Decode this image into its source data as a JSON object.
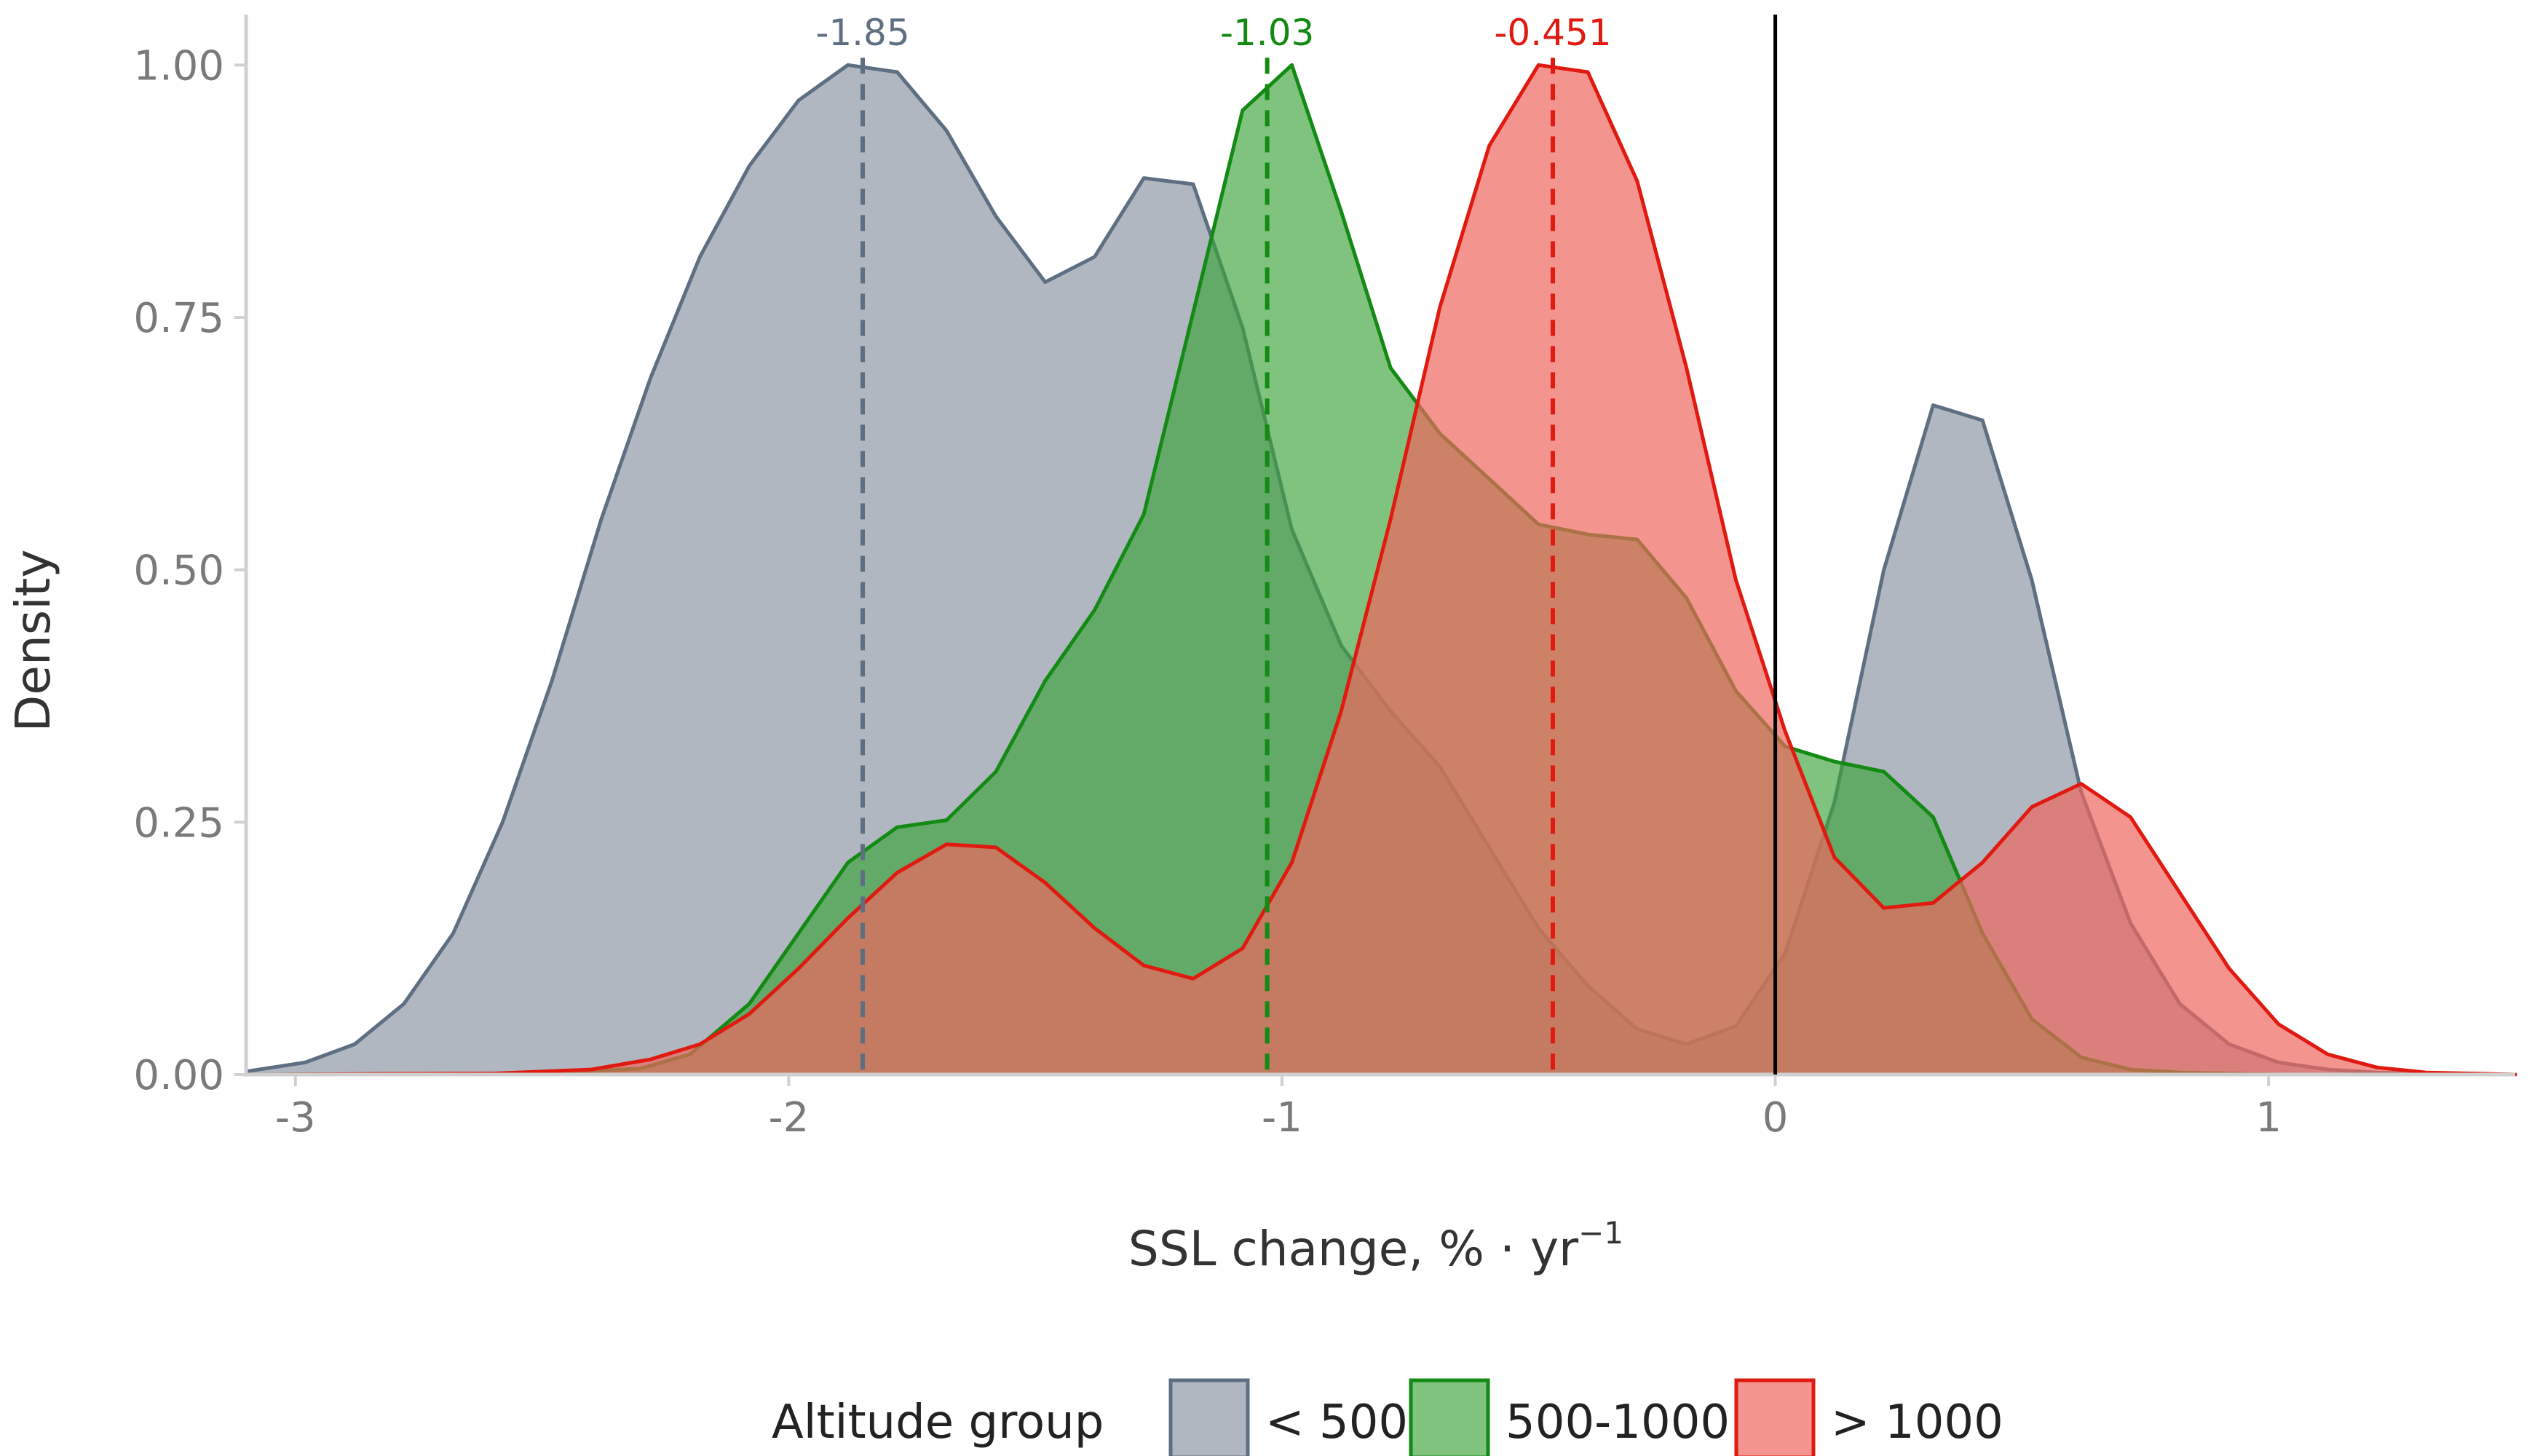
{
  "chart_data": {
    "type": "area",
    "title": "",
    "xlabel": "SSL change, % · yr",
    "xlabel_superscript": "−1",
    "ylabel": "Density",
    "xlim": [
      -3.1,
      1.5
    ],
    "ylim": [
      0,
      1.05
    ],
    "x_ticks": [
      -3,
      -2,
      -1,
      0,
      1
    ],
    "x_tick_labels": [
      "-3",
      "-2",
      "-1",
      "0",
      "1"
    ],
    "y_ticks": [
      0,
      0.25,
      0.5,
      0.75,
      1.0
    ],
    "y_tick_labels": [
      "0.00",
      "0.25",
      "0.50",
      "0.75",
      "1.00"
    ],
    "grid": false,
    "reference_line_x": 0,
    "legend": {
      "title": "Altitude group",
      "position": "bottom"
    },
    "series": [
      {
        "name": "< 500",
        "fill": "#9aa3b0",
        "line": "#5f6f82",
        "fill_opacity": 0.78,
        "mean": -1.85,
        "mean_label": "-1.85",
        "x": [
          -3.1,
          -2.98,
          -2.88,
          -2.78,
          -2.68,
          -2.58,
          -2.48,
          -2.38,
          -2.28,
          -2.18,
          -2.08,
          -1.98,
          -1.88,
          -1.78,
          -1.68,
          -1.58,
          -1.48,
          -1.38,
          -1.28,
          -1.18,
          -1.08,
          -0.98,
          -0.88,
          -0.78,
          -0.68,
          -0.58,
          -0.48,
          -0.38,
          -0.28,
          -0.18,
          -0.08,
          0.02,
          0.12,
          0.22,
          0.32,
          0.42,
          0.52,
          0.62,
          0.72,
          0.82,
          0.92,
          1.02,
          1.12,
          1.22,
          1.32,
          1.5
        ],
        "y": [
          0.003,
          0.012,
          0.03,
          0.07,
          0.14,
          0.25,
          0.39,
          0.55,
          0.69,
          0.81,
          0.9,
          0.965,
          1.0,
          0.993,
          0.935,
          0.85,
          0.785,
          0.81,
          0.888,
          0.882,
          0.74,
          0.54,
          0.425,
          0.36,
          0.305,
          0.225,
          0.145,
          0.088,
          0.045,
          0.03,
          0.048,
          0.12,
          0.27,
          0.5,
          0.663,
          0.648,
          0.49,
          0.28,
          0.15,
          0.07,
          0.03,
          0.012,
          0.005,
          0.002,
          0.001,
          0.0
        ]
      },
      {
        "name": "500-1000",
        "fill": "#3aa33a",
        "line": "#138a13",
        "fill_opacity": 0.65,
        "mean": -1.03,
        "mean_label": "-1.03",
        "x": [
          -3.1,
          -2.5,
          -2.3,
          -2.2,
          -2.08,
          -1.98,
          -1.88,
          -1.78,
          -1.68,
          -1.58,
          -1.48,
          -1.38,
          -1.28,
          -1.18,
          -1.08,
          -0.98,
          -0.88,
          -0.78,
          -0.68,
          -0.58,
          -0.48,
          -0.38,
          -0.28,
          -0.18,
          -0.08,
          0.02,
          0.12,
          0.22,
          0.32,
          0.42,
          0.52,
          0.62,
          0.72,
          0.82,
          0.92,
          1.02,
          1.5
        ],
        "y": [
          0.0,
          0.001,
          0.006,
          0.02,
          0.07,
          0.14,
          0.21,
          0.245,
          0.252,
          0.3,
          0.39,
          0.46,
          0.555,
          0.755,
          0.955,
          1.0,
          0.855,
          0.7,
          0.635,
          0.59,
          0.545,
          0.535,
          0.53,
          0.472,
          0.38,
          0.325,
          0.31,
          0.3,
          0.255,
          0.14,
          0.055,
          0.017,
          0.005,
          0.002,
          0.001,
          0.0,
          0.0
        ]
      },
      {
        "name": "> 1000",
        "fill": "#ee675e",
        "line": "#e01a10",
        "fill_opacity": 0.7,
        "mean": -0.451,
        "mean_label": "-0.451",
        "x": [
          -3.1,
          -2.6,
          -2.4,
          -2.28,
          -2.18,
          -2.08,
          -1.98,
          -1.88,
          -1.78,
          -1.68,
          -1.58,
          -1.48,
          -1.38,
          -1.28,
          -1.18,
          -1.08,
          -0.98,
          -0.88,
          -0.78,
          -0.68,
          -0.58,
          -0.48,
          -0.38,
          -0.28,
          -0.18,
          -0.08,
          0.02,
          0.12,
          0.22,
          0.32,
          0.42,
          0.52,
          0.62,
          0.72,
          0.82,
          0.92,
          1.02,
          1.12,
          1.22,
          1.32,
          1.5
        ],
        "y": [
          0.0,
          0.001,
          0.005,
          0.015,
          0.03,
          0.06,
          0.105,
          0.155,
          0.2,
          0.228,
          0.225,
          0.19,
          0.145,
          0.108,
          0.095,
          0.125,
          0.21,
          0.36,
          0.55,
          0.76,
          0.92,
          1.0,
          0.993,
          0.885,
          0.7,
          0.49,
          0.34,
          0.215,
          0.165,
          0.17,
          0.21,
          0.265,
          0.288,
          0.255,
          0.18,
          0.105,
          0.05,
          0.02,
          0.007,
          0.002,
          0.0
        ]
      }
    ]
  }
}
